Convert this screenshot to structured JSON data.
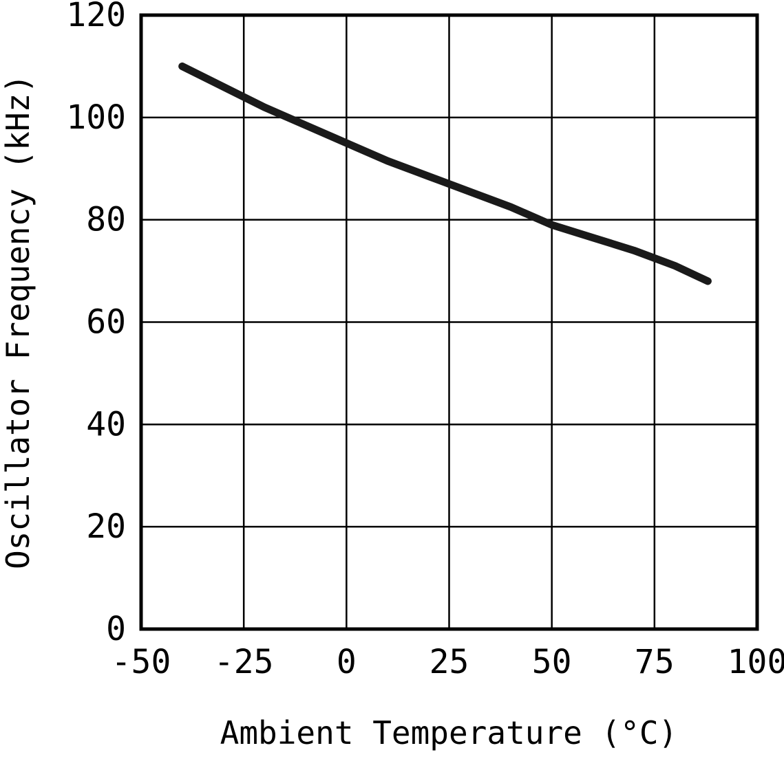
{
  "chart_data": {
    "type": "line",
    "title": "",
    "xlabel": "Ambient Temperature (°C)",
    "ylabel": "Oscillator Frequency (kHz)",
    "xlim": [
      -50,
      100
    ],
    "ylim": [
      0,
      120
    ],
    "xticks": [
      -50,
      -25,
      0,
      25,
      50,
      75,
      100
    ],
    "yticks": [
      0,
      20,
      40,
      60,
      80,
      100,
      120
    ],
    "grid": true,
    "legend": "none",
    "line_color": "#1a1a1a",
    "series": [
      {
        "name": "oscillator-frequency",
        "x": [
          -40,
          -30,
          -20,
          -10,
          0,
          10,
          20,
          30,
          40,
          50,
          60,
          70,
          80,
          88
        ],
        "y": [
          110,
          106,
          102,
          98.5,
          95,
          91.5,
          88.5,
          85.5,
          82.5,
          79,
          76.5,
          74,
          71,
          68
        ]
      }
    ]
  }
}
